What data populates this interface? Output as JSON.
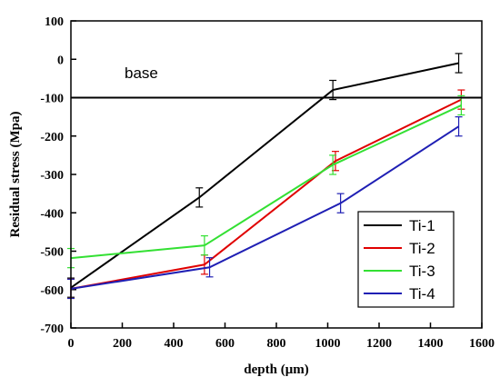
{
  "chart_data": {
    "type": "line",
    "xlabel": "depth (μm)",
    "ylabel": "Residual stress (Mpa)",
    "xlim": [
      0,
      1600
    ],
    "ylim": [
      -700,
      100
    ],
    "xticks": [
      0,
      200,
      400,
      600,
      800,
      1000,
      1200,
      1400,
      1600
    ],
    "yticks": [
      100,
      0,
      -100,
      -200,
      -300,
      -400,
      -500,
      -600,
      -700
    ],
    "grid": false,
    "legend_position": "bottom-right",
    "reference_line": {
      "y": -100,
      "label": "base"
    },
    "series": [
      {
        "name": "Ti-1",
        "color": "#000000",
        "x": [
          0,
          500,
          1020,
          1510
        ],
        "y": [
          -595,
          -360,
          -80,
          -10
        ],
        "err": [
          25,
          25,
          25,
          25
        ]
      },
      {
        "name": "Ti-2",
        "color": "#e00000",
        "x": [
          0,
          520,
          1030,
          1520
        ],
        "y": [
          -598,
          -535,
          -265,
          -105
        ],
        "err": [
          25,
          25,
          25,
          25
        ]
      },
      {
        "name": "Ti-3",
        "color": "#33e033",
        "x": [
          0,
          520,
          1020,
          1520
        ],
        "y": [
          -518,
          -485,
          -275,
          -120
        ],
        "err": [
          25,
          25,
          25,
          25
        ]
      },
      {
        "name": "Ti-4",
        "color": "#1f1fb4",
        "x": [
          0,
          540,
          1050,
          1510
        ],
        "y": [
          -598,
          -542,
          -375,
          -175
        ],
        "err": [
          25,
          25,
          25,
          25
        ]
      }
    ]
  }
}
